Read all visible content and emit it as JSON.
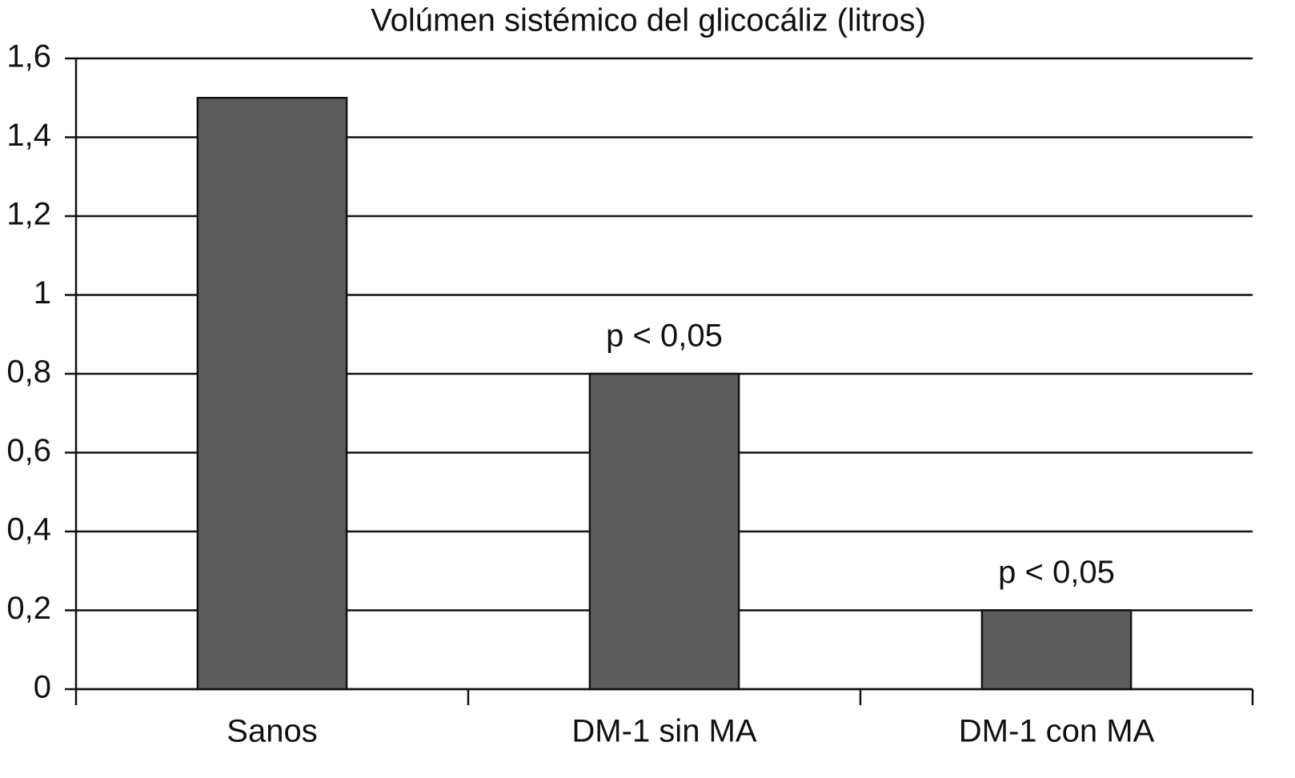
{
  "chart_data": {
    "type": "bar",
    "title": "Volúmen sistémico del glicocáliz (litros)",
    "categories": [
      "Sanos",
      "DM-1 sin MA",
      "DM-1 con MA"
    ],
    "values": [
      1.5,
      0.8,
      0.2
    ],
    "annotations": [
      null,
      "p < 0,05",
      "p < 0,05"
    ],
    "color": "#5d5d5d",
    "ylim": [
      0,
      1.6
    ],
    "yticks": [
      0,
      {
        "value": 0.2,
        "label": "0,2"
      },
      {
        "value": 0.4,
        "label": "0,4"
      },
      {
        "value": 0.6,
        "label": "0,6"
      },
      {
        "value": 0.8,
        "label": "0,8"
      },
      1,
      {
        "value": 1.2,
        "label": "1,2"
      },
      {
        "value": 1.4,
        "label": "1,4"
      },
      {
        "value": 1.6,
        "label": "1,6"
      }
    ],
    "grid": true
  }
}
